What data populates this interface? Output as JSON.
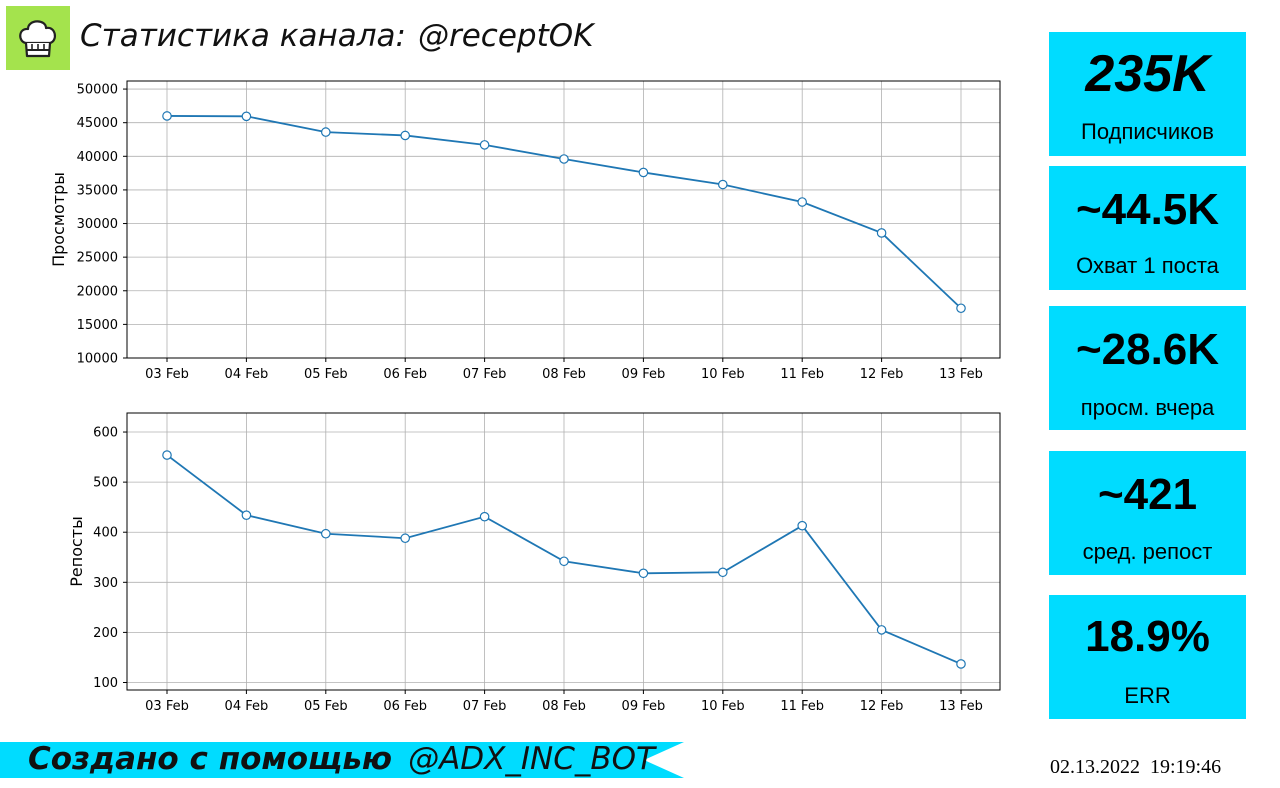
{
  "header": {
    "label": "Статистика канала:",
    "channel": "@receptOK",
    "logo_icon": "chef-hat-icon",
    "logo_color": "#a4e34d"
  },
  "chart_data": [
    {
      "type": "line",
      "x": [
        "03 Feb",
        "04 Feb",
        "05 Feb",
        "06 Feb",
        "07 Feb",
        "08 Feb",
        "09 Feb",
        "10 Feb",
        "11 Feb",
        "12 Feb",
        "13 Feb"
      ],
      "values": [
        46000,
        45950,
        43600,
        43100,
        41700,
        39600,
        37600,
        35800,
        33200,
        28600,
        17400
      ],
      "ylabel": "Просмотры",
      "yticks": [
        10000,
        15000,
        20000,
        25000,
        30000,
        35000,
        40000,
        45000,
        50000
      ],
      "ylim": [
        10000,
        51200
      ],
      "grid": true,
      "color": "#1f77b4"
    },
    {
      "type": "line",
      "x": [
        "03 Feb",
        "04 Feb",
        "05 Feb",
        "06 Feb",
        "07 Feb",
        "08 Feb",
        "09 Feb",
        "10 Feb",
        "11 Feb",
        "12 Feb",
        "13 Feb"
      ],
      "values": [
        554,
        434,
        397,
        388,
        431,
        342,
        318,
        320,
        413,
        205,
        137
      ],
      "ylabel": "Репосты",
      "yticks": [
        100,
        200,
        300,
        400,
        500,
        600
      ],
      "ylim": [
        85,
        638
      ],
      "grid": true,
      "color": "#1f77b4"
    }
  ],
  "stats": [
    {
      "value": "235K",
      "label": "Подписчиков"
    },
    {
      "value": "~44.5K",
      "label": "Охват 1 поста"
    },
    {
      "value": "~28.6K",
      "label": "просм. вчера"
    },
    {
      "value": "~421",
      "label": "сред. репост"
    },
    {
      "value": "18.9%",
      "label": "ERR"
    }
  ],
  "stat_card_color": "#00dcff",
  "footer": {
    "made_with": "Создано с помощью",
    "bot": "@ADX_INC_BOT",
    "banner_color": "#00dcff",
    "date": "02.13.2022",
    "time": "19:19:46"
  }
}
